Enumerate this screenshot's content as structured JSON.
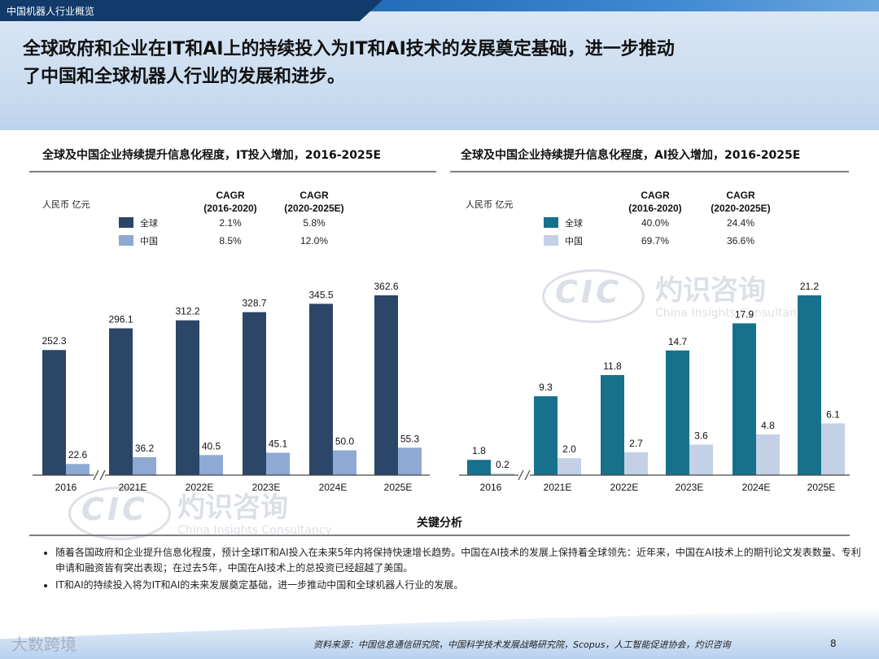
{
  "header": {
    "section_tab": "中国机器人行业概览",
    "headline_line1": "全球政府和企业在IT和AI上的持续投入为IT和AI技术的发展奠定基础，进一步推动",
    "headline_line2": "了中国和全球机器人行业的发展和进步。"
  },
  "colors": {
    "global_it": "#2c4667",
    "china_it": "#8ea9d4",
    "global_ai": "#17718c",
    "china_ai": "#c3d0e6"
  },
  "chart_data": [
    {
      "type": "bar",
      "title": "全球及中国企业持续提升信息化程度，IT投入增加，2016-2025E",
      "unit_label": "人民币 亿元",
      "categories": [
        "2016",
        "2021E",
        "2022E",
        "2023E",
        "2024E",
        "2025E"
      ],
      "axis_break_after": "2016",
      "series": [
        {
          "name": "全球",
          "values": [
            252.3,
            296.1,
            312.2,
            328.7,
            345.5,
            362.6
          ],
          "labels": [
            "252.3",
            "296.1",
            "312.2",
            "328.7",
            "345.5",
            "362.6"
          ]
        },
        {
          "name": "中国",
          "values": [
            22.6,
            36.2,
            40.5,
            45.1,
            50.0,
            55.3
          ],
          "labels": [
            "22.6",
            "36.2",
            "40.5",
            "45.1",
            "50.0",
            "55.3"
          ]
        }
      ],
      "cagr_headers": [
        "CAGR",
        "(2016-2020)",
        "CAGR",
        "(2020-2025E)"
      ],
      "cagr": [
        {
          "series": "全球",
          "c1": "2.1%",
          "c2": "5.8%"
        },
        {
          "series": "中国",
          "c1": "8.5%",
          "c2": "12.0%"
        }
      ],
      "ylim": [
        0,
        370
      ]
    },
    {
      "type": "bar",
      "title": "全球及中国企业持续提升信息化程度，AI投入增加，2016-2025E",
      "unit_label": "人民币 亿元",
      "categories": [
        "2016",
        "2021E",
        "2022E",
        "2023E",
        "2024E",
        "2025E"
      ],
      "axis_break_after": "2016",
      "series": [
        {
          "name": "全球",
          "values": [
            1.8,
            9.3,
            11.8,
            14.7,
            17.9,
            21.2
          ],
          "labels": [
            "1.8",
            "9.3",
            "11.8",
            "14.7",
            "17.9",
            "21.2"
          ]
        },
        {
          "name": "中国",
          "values": [
            0.2,
            2.0,
            2.7,
            3.6,
            4.8,
            6.1
          ],
          "labels": [
            "0.2",
            "2.0",
            "2.7",
            "3.6",
            "4.8",
            "6.1"
          ]
        }
      ],
      "cagr_headers": [
        "CAGR",
        "(2016-2020)",
        "CAGR",
        "(2020-2025E)"
      ],
      "cagr": [
        {
          "series": "全球",
          "c1": "40.0%",
          "c2": "24.4%"
        },
        {
          "series": "中国",
          "c1": "69.7%",
          "c2": "36.6%"
        }
      ],
      "ylim": [
        0,
        21.6
      ]
    }
  ],
  "analysis": {
    "title": "关键分析",
    "bullets": [
      "随着各国政府和企业提升信息化程度，预计全球IT和AI投入在未来5年内将保持快速增长趋势。中国在AI技术的发展上保持着全球领先：近年来，中国在AI技术上的期刊论文发表数量、专利申请和融资皆有突出表现；在过去5年，中国在AI技术上的总投资已经超越了美国。",
      "IT和AI的持续投入将为IT和AI的未来发展奠定基础，进一步推动中国和全球机器人行业的发展。"
    ]
  },
  "watermark": {
    "mark": "CIC",
    "name_cn": "灼识咨询",
    "name_en": "China Insights Consultancy"
  },
  "footer": {
    "source": "资料来源：中国信息通信研究院，中国科学技术发展战略研究院，Scopus，人工智能促进协会，灼识咨询",
    "page_number": "8",
    "corner_logo": "大数跨境"
  }
}
